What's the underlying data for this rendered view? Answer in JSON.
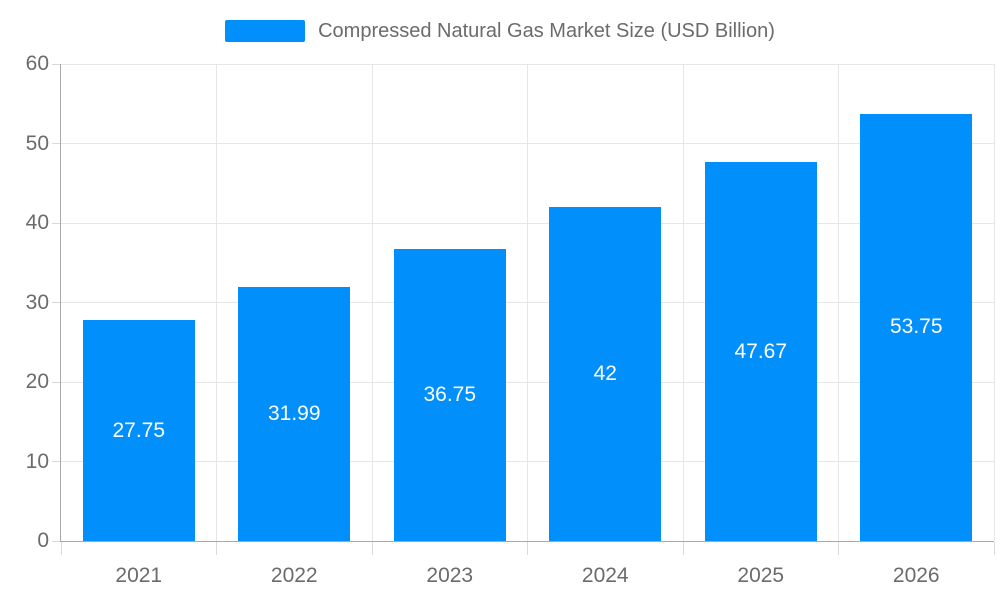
{
  "chart_data": {
    "type": "bar",
    "title": "Compressed Natural Gas Market Size (USD Billion)",
    "series_name": "Compressed Natural Gas Market Size (USD Billion)",
    "categories": [
      "2021",
      "2022",
      "2023",
      "2024",
      "2025",
      "2026"
    ],
    "values": [
      27.75,
      31.99,
      36.75,
      42,
      47.67,
      53.75
    ],
    "value_labels": [
      "27.75",
      "31.99",
      "36.75",
      "42",
      "47.67",
      "53.75"
    ],
    "ylim": [
      0,
      60
    ],
    "y_ticks": [
      0,
      10,
      20,
      30,
      40,
      50,
      60
    ],
    "xlabel": "",
    "ylabel": "",
    "legend_position": "top",
    "grid": true,
    "colors": {
      "bar": "#008FFB",
      "grid_line": "#e7e7e7",
      "axis_line": "#a8a8a8",
      "tick": "#d9d9d9",
      "label_text": "#6b6b6b",
      "value_label_text": "#ffffff",
      "background": "#ffffff"
    }
  }
}
